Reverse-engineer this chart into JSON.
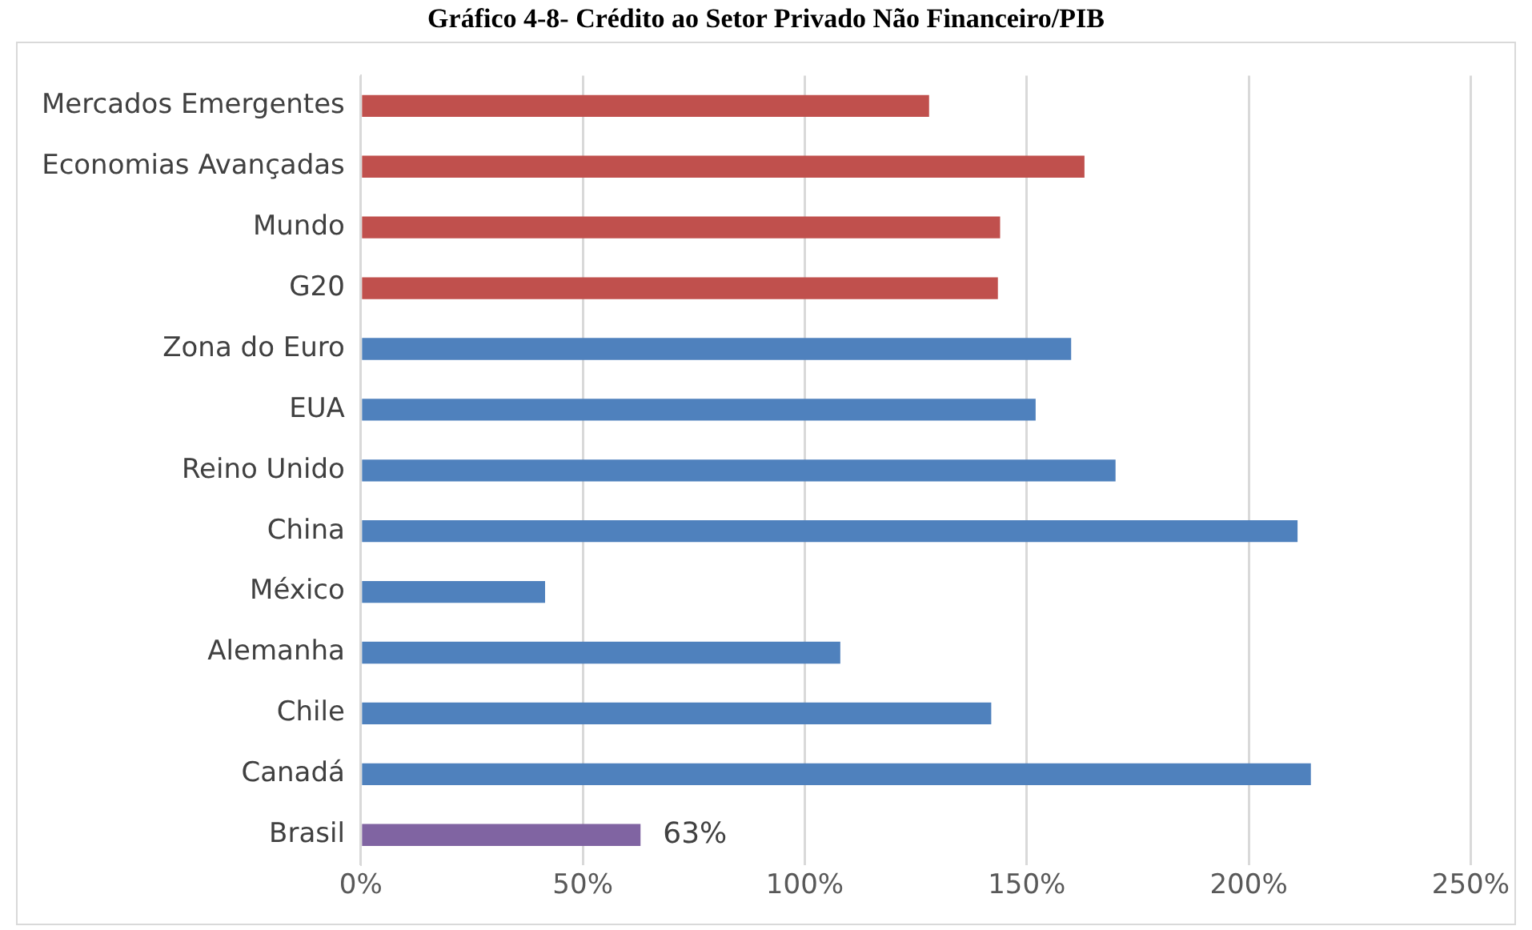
{
  "chart_data": {
    "type": "bar",
    "orientation": "horizontal",
    "title": "Gráfico 4-8- Crédito ao Setor Privado Não Financeiro/PIB",
    "categories": [
      "Mercados Emergentes",
      "Economias Avançadas",
      "Mundo",
      "G20",
      "Zona do Euro",
      "EUA",
      "Reino Unido",
      "China",
      "México",
      "Alemanha",
      "Chile",
      "Canadá",
      "Brasil"
    ],
    "values": [
      128,
      163,
      144,
      143.5,
      160,
      152,
      170,
      211,
      41.5,
      108,
      142,
      214,
      63
    ],
    "colors": [
      "#c0504d",
      "#c0504d",
      "#c0504d",
      "#c0504d",
      "#4f81bd",
      "#4f81bd",
      "#4f81bd",
      "#4f81bd",
      "#4f81bd",
      "#4f81bd",
      "#4f81bd",
      "#4f81bd",
      "#8064a2"
    ],
    "value_labels": [
      null,
      null,
      null,
      null,
      null,
      null,
      null,
      null,
      null,
      null,
      null,
      null,
      "63%"
    ],
    "xlim": [
      0,
      250
    ],
    "xticks": [
      {
        "value": 0,
        "label": "0%"
      },
      {
        "value": 50,
        "label": "50%"
      },
      {
        "value": 100,
        "label": "100%"
      },
      {
        "value": 150,
        "label": "150%"
      },
      {
        "value": 200,
        "label": "200%"
      },
      {
        "value": 250,
        "label": "250%"
      }
    ],
    "grid": "x",
    "legend": false
  }
}
